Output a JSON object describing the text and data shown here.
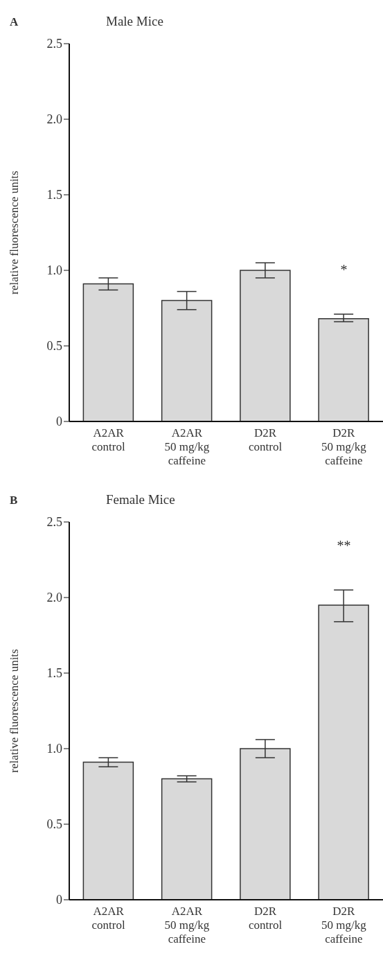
{
  "chart_data": [
    {
      "type": "bar",
      "title": "Male Mice",
      "ylabel": "relative fluorescence units",
      "annotations": [
        "A",
        "*"
      ],
      "categories": [
        "A2AR\ncontrol",
        "A2AR\n50 mg/kg\ncaffeine",
        "D2R\ncontrol",
        "D2R\n50 mg/kg\ncaffeine"
      ],
      "values": [
        0.91,
        0.8,
        1.0,
        0.68
      ],
      "errors": [
        [
          0.87,
          0.95
        ],
        [
          0.74,
          0.86
        ],
        [
          0.95,
          1.05
        ],
        [
          0.66,
          0.71
        ]
      ],
      "color": "#d9d9d9",
      "ylim": [
        0,
        2.5
      ],
      "yticks": [
        {
          "value": 0,
          "label": "0"
        },
        {
          "value": 0.5,
          "label": "0.5"
        },
        {
          "value": 1,
          "label": "1.0"
        },
        {
          "value": 1.5,
          "label": "1.5"
        },
        {
          "value": 2,
          "label": "2.0"
        },
        {
          "value": 2.5,
          "label": "2.5"
        }
      ],
      "grid": false,
      "legend": false
    },
    {
      "type": "bar",
      "title": "Female Mice",
      "ylabel": "relative fluorescence units",
      "annotations": [
        "B",
        "**"
      ],
      "categories": [
        "A2AR\ncontrol",
        "A2AR\n50 mg/kg\ncaffeine",
        "D2R\ncontrol",
        "D2R\n50 mg/kg\ncaffeine"
      ],
      "values": [
        0.91,
        0.8,
        1.0,
        1.95
      ],
      "errors": [
        [
          0.88,
          0.94
        ],
        [
          0.78,
          0.82
        ],
        [
          0.94,
          1.06
        ],
        [
          1.84,
          2.05
        ]
      ],
      "color": "#d9d9d9",
      "ylim": [
        0,
        2.5
      ],
      "yticks": [
        {
          "value": 0,
          "label": "0"
        },
        {
          "value": 0.5,
          "label": "0.5"
        },
        {
          "value": 1,
          "label": "1.0"
        },
        {
          "value": 1.5,
          "label": "1.5"
        },
        {
          "value": 2,
          "label": "2.0"
        },
        {
          "value": 2.5,
          "label": "2.5"
        }
      ],
      "grid": false,
      "legend": false
    }
  ]
}
